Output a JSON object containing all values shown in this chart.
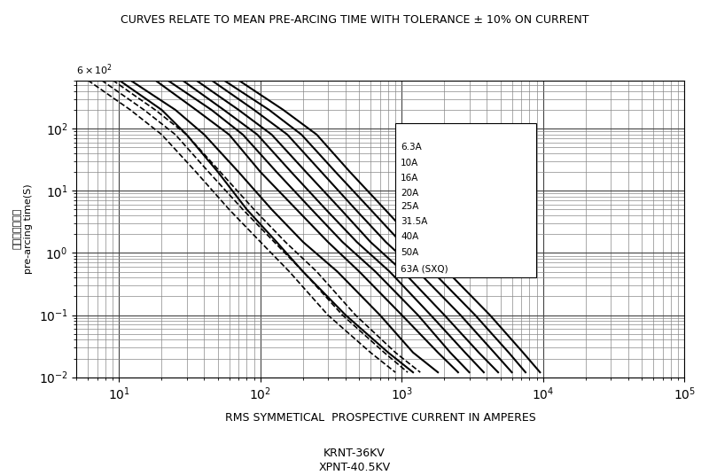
{
  "title": "CURVES RELATE TO MEAN PRE-ARCING TIME WITH TOLERANCE ± 10% ON CURRENT",
  "xlabel": "RMS SYMMETICAL  PROSPECTIVE CURRENT IN AMPERES",
  "ylabel_cn": "弧前时间（秒）",
  "ylabel_en": "pre-arcing time(S)",
  "subtitle1": "KRNT-36KV",
  "subtitle2": "XPNT-40.5KV",
  "xlim": [
    5,
    100000
  ],
  "ylim": [
    0.01,
    600
  ],
  "curve_labels": [
    "6.3A",
    "10A",
    "16A",
    "20A",
    "25A",
    "31.5A",
    "40A",
    "50A",
    "63A (SXQ)"
  ],
  "curves": [
    {
      "label": "6.3A",
      "x": [
        10,
        20,
        30,
        50,
        80,
        130,
        200,
        400,
        800,
        1200
      ],
      "y": [
        600,
        200,
        80,
        20,
        5,
        1.5,
        0.5,
        0.1,
        0.025,
        0.012
      ]
    },
    {
      "label": "10A",
      "x": [
        12,
        25,
        40,
        70,
        120,
        200,
        350,
        700,
        1200,
        1800
      ],
      "y": [
        600,
        200,
        80,
        20,
        5,
        1.5,
        0.5,
        0.1,
        0.025,
        0.012
      ]
    },
    {
      "label": "16A",
      "x": [
        18,
        35,
        60,
        100,
        180,
        300,
        500,
        1000,
        1800,
        2500
      ],
      "y": [
        600,
        200,
        80,
        20,
        5,
        1.5,
        0.5,
        0.1,
        0.025,
        0.012
      ]
    },
    {
      "label": "20A",
      "x": [
        22,
        45,
        75,
        130,
        230,
        380,
        650,
        1300,
        2200,
        3000
      ],
      "y": [
        600,
        200,
        80,
        20,
        5,
        1.5,
        0.5,
        0.1,
        0.025,
        0.012
      ]
    },
    {
      "label": "25A",
      "x": [
        28,
        55,
        95,
        165,
        290,
        480,
        820,
        1600,
        2800,
        3800
      ],
      "y": [
        600,
        200,
        80,
        20,
        5,
        1.5,
        0.5,
        0.1,
        0.025,
        0.012
      ]
    },
    {
      "label": "31.5A",
      "x": [
        35,
        70,
        120,
        210,
        370,
        600,
        1020,
        2000,
        3500,
        4800
      ],
      "y": [
        600,
        200,
        80,
        20,
        5,
        1.5,
        0.5,
        0.1,
        0.025,
        0.012
      ]
    },
    {
      "label": "40A",
      "x": [
        45,
        90,
        155,
        270,
        470,
        770,
        1300,
        2600,
        4500,
        6000
      ],
      "y": [
        600,
        200,
        80,
        20,
        5,
        1.5,
        0.5,
        0.1,
        0.025,
        0.012
      ]
    },
    {
      "label": "50A",
      "x": [
        55,
        115,
        195,
        340,
        600,
        980,
        1650,
        3300,
        5700,
        7500
      ],
      "y": [
        600,
        200,
        80,
        20,
        5,
        1.5,
        0.5,
        0.1,
        0.025,
        0.012
      ]
    },
    {
      "label": "63A (SXQ)",
      "x": [
        70,
        145,
        250,
        430,
        760,
        1240,
        2100,
        4200,
        7200,
        9500
      ],
      "y": [
        600,
        200,
        80,
        20,
        5,
        1.5,
        0.5,
        0.1,
        0.025,
        0.012
      ]
    }
  ],
  "dashed_curves": [
    {
      "x": [
        6,
        12,
        20,
        35,
        60,
        100,
        160,
        300,
        600,
        900
      ],
      "y": [
        600,
        200,
        80,
        20,
        5,
        1.5,
        0.5,
        0.1,
        0.025,
        0.012
      ]
    },
    {
      "x": [
        7.5,
        15,
        25,
        43,
        75,
        125,
        200,
        380,
        750,
        1100
      ],
      "y": [
        600,
        200,
        80,
        20,
        5,
        1.5,
        0.5,
        0.1,
        0.025,
        0.012
      ]
    },
    {
      "x": [
        9,
        18,
        30,
        52,
        90,
        150,
        250,
        470,
        900,
        1350
      ],
      "y": [
        600,
        200,
        80,
        20,
        5,
        1.5,
        0.5,
        0.1,
        0.025,
        0.012
      ]
    }
  ],
  "line_color": "black",
  "bg_color": "white",
  "grid_color": "#888888"
}
